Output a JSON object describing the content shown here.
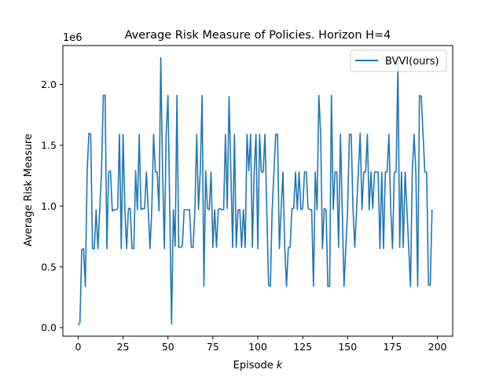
{
  "chart_data": {
    "type": "line",
    "title": "Average Risk Measure of Policies. Horizon H=4",
    "xlabel_main": "Episode ",
    "xlabel_var": "k",
    "ylabel": "Average Risk Measure",
    "y_offset_label": "1e6",
    "xlim": [
      -8.5,
      208.5
    ],
    "ylim": [
      -0.07,
      2.32
    ],
    "x_ticks": [
      0,
      25,
      50,
      75,
      100,
      125,
      150,
      175,
      200
    ],
    "x_tick_labels": [
      "0",
      "25",
      "50",
      "75",
      "100",
      "125",
      "150",
      "175",
      "200"
    ],
    "y_ticks": [
      0.0,
      0.5,
      1.0,
      1.5,
      2.0
    ],
    "y_tick_labels": [
      "0.0",
      "0.5",
      "1.0",
      "1.5",
      "2.0"
    ],
    "legend_position": "top-right",
    "grid": false,
    "series": [
      {
        "name": "BVVI(ours)",
        "color": "#1f77b4",
        "y": [
          0.02,
          0.04,
          0.64,
          0.65,
          0.34,
          1.28,
          1.6,
          1.59,
          0.65,
          0.65,
          0.97,
          0.65,
          0.97,
          1.28,
          1.91,
          1.91,
          0.65,
          1.28,
          1.29,
          0.96,
          0.97,
          0.97,
          0.98,
          1.59,
          0.65,
          1.59,
          0.98,
          0.65,
          0.98,
          0.98,
          0.65,
          0.65,
          1.29,
          0.97,
          1.59,
          0.97,
          0.98,
          0.98,
          1.28,
          0.97,
          0.65,
          0.97,
          1.59,
          1.28,
          1.28,
          0.96,
          2.22,
          1.28,
          0.65,
          1.59,
          1.91,
          0.97,
          0.03,
          0.97,
          0.67,
          1.91,
          0.66,
          0.66,
          0.67,
          0.97,
          0.97,
          0.97,
          0.97,
          0.66,
          0.66,
          0.97,
          1.59,
          0.97,
          1.29,
          1.91,
          0.34,
          1.29,
          0.98,
          0.97,
          1.28,
          0.66,
          0.97,
          0.66,
          0.97,
          0.98,
          0.97,
          0.97,
          1.59,
          0.98,
          1.9,
          1.29,
          0.66,
          1.59,
          0.66,
          0.97,
          0.97,
          0.66,
          0.97,
          0.66,
          1.59,
          1.29,
          1.59,
          0.66,
          1.29,
          1.59,
          0.65,
          1.59,
          1.28,
          1.28,
          1.59,
          0.97,
          0.35,
          0.34,
          0.97,
          1.28,
          1.59,
          1.59,
          0.65,
          0.97,
          1.28,
          0.66,
          0.34,
          0.66,
          0.66,
          0.98,
          0.98,
          1.28,
          0.97,
          1.28,
          0.97,
          0.98,
          1.28,
          1.28,
          0.98,
          0.97,
          0.97,
          0.34,
          1.28,
          0.97,
          1.91,
          1.59,
          0.65,
          0.98,
          0.97,
          0.34,
          0.34,
          1.91,
          0.97,
          1.28,
          1.28,
          0.66,
          1.59,
          0.98,
          0.34,
          0.65,
          0.97,
          1.59,
          1.59,
          0.98,
          0.66,
          0.97,
          1.29,
          1.6,
          0.97,
          1.28,
          1.28,
          1.59,
          0.97,
          1.28,
          0.98,
          1.28,
          1.28,
          1.28,
          0.65,
          1.28,
          0.65,
          1.28,
          1.28,
          1.59,
          0.97,
          0.65,
          1.28,
          1.28,
          2.17,
          0.66,
          1.28,
          0.66,
          1.28,
          0.98,
          0.66,
          0.34,
          1.28,
          1.59,
          1.28,
          0.34,
          1.91,
          1.9,
          1.59,
          1.28,
          1.28,
          0.35,
          0.35,
          0.97
        ]
      }
    ]
  }
}
